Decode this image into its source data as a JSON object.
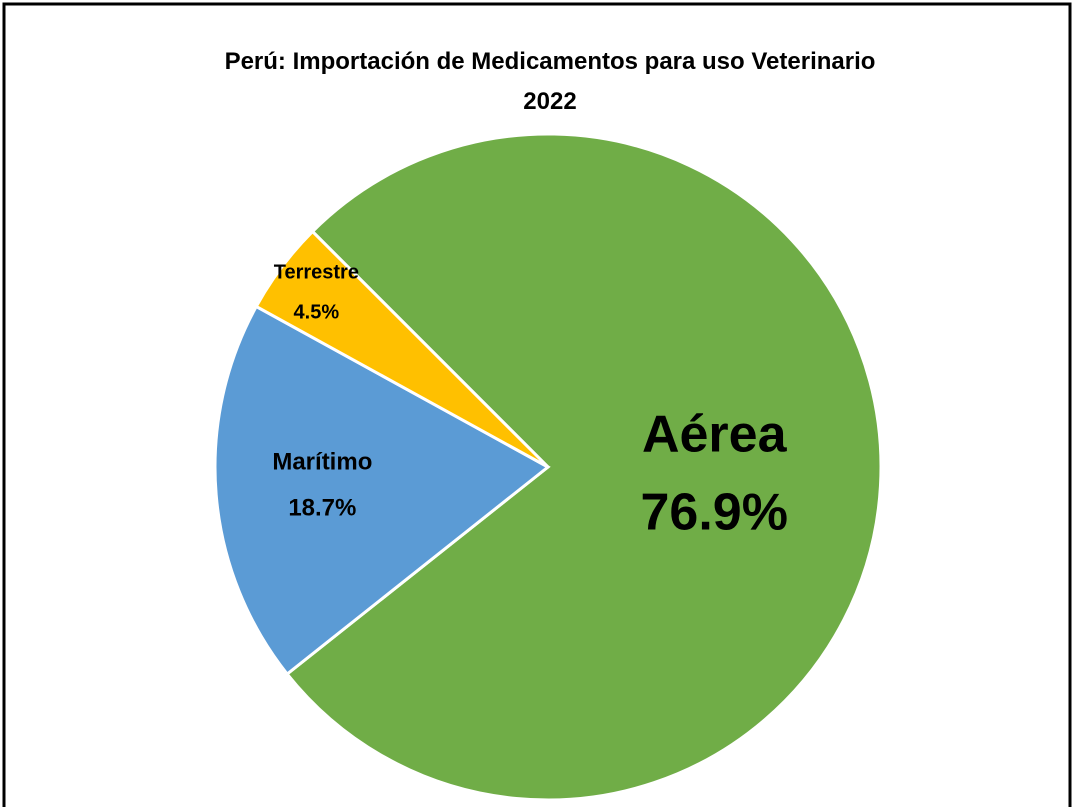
{
  "chart_data": {
    "type": "pie",
    "title": "Perú: Importación de Medicamentos para uso Veterinario 2022",
    "categories": [
      "Aérea",
      "Marítimo",
      "Terrestre"
    ],
    "values": [
      76.9,
      18.7,
      4.5
    ],
    "value_labels": [
      "76.9%",
      "18.7%",
      "4.5%"
    ],
    "colors": [
      "#70ad47",
      "#5b9bd5",
      "#ffc000"
    ]
  }
}
